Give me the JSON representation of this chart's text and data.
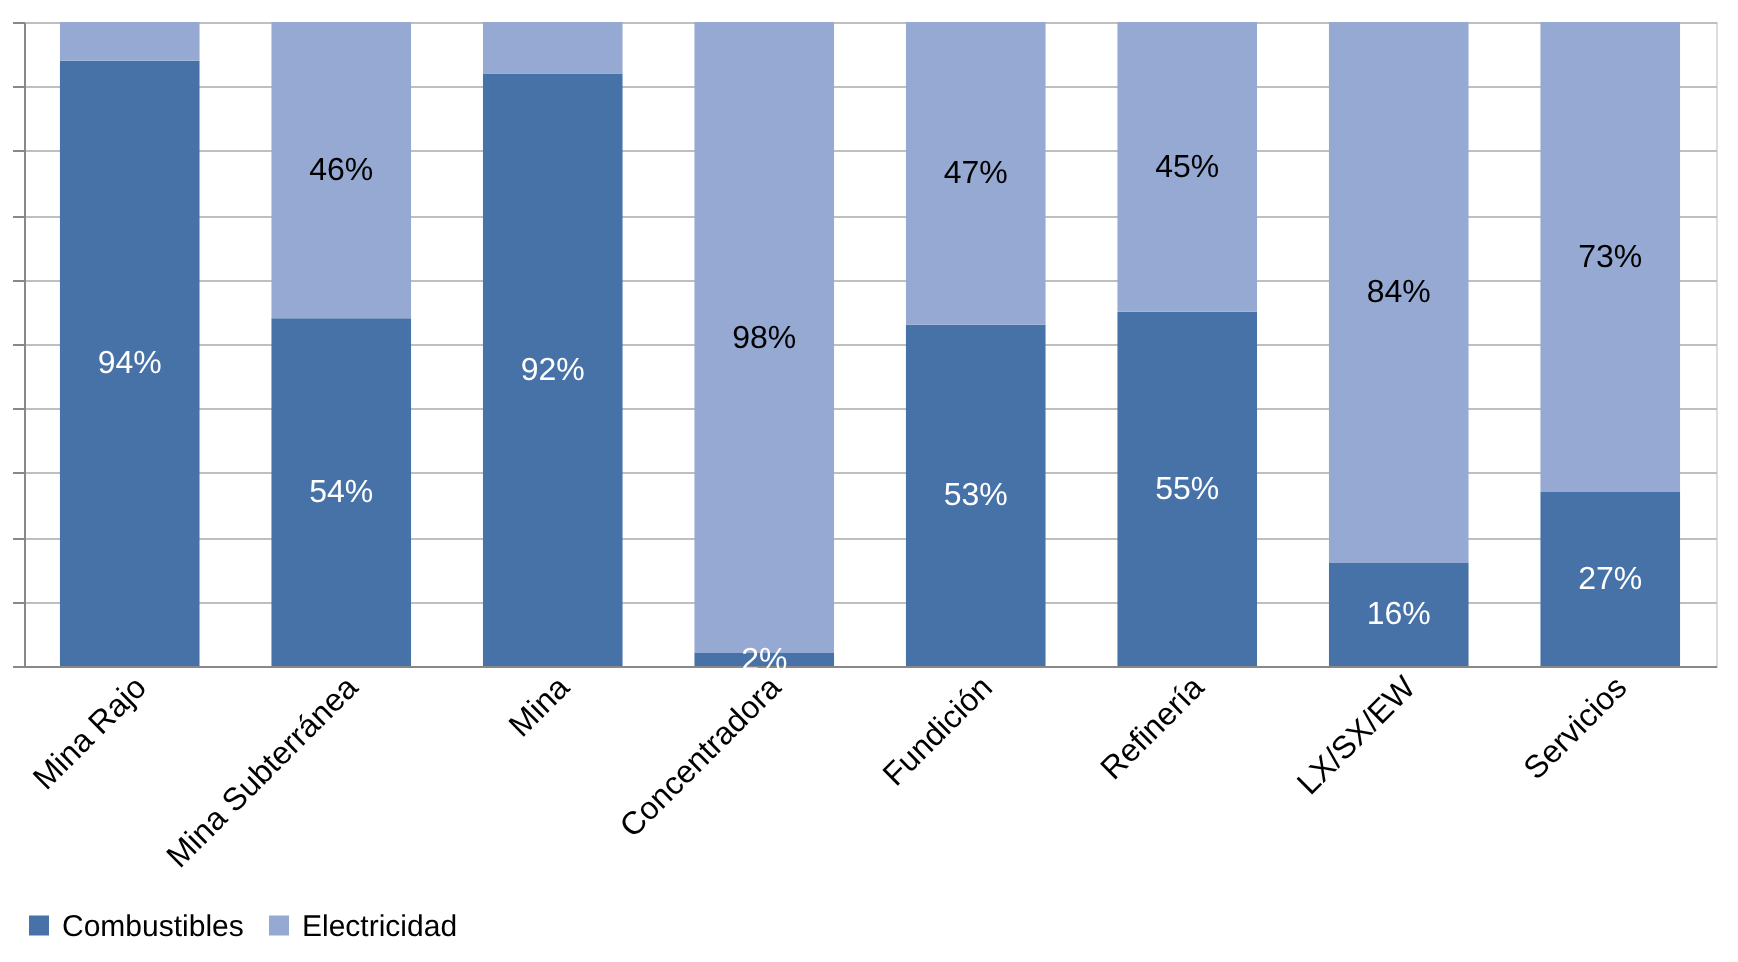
{
  "chart_data": {
    "type": "bar",
    "stacked": true,
    "categories": [
      "Mina Rajo",
      "Mina Subterránea",
      "Mina",
      "Concentradora",
      "Fundición",
      "Refinería",
      "LX/SX/EW",
      "Servicios"
    ],
    "series": [
      {
        "name": "Combustibles",
        "color": "#4672a8",
        "values": [
          94,
          54,
          92,
          2,
          53,
          55,
          16,
          27
        ],
        "value_labels": [
          "94%",
          "54%",
          "92%",
          "2%",
          "53%",
          "55%",
          "16%",
          "27%"
        ]
      },
      {
        "name": "Electricidad",
        "color": "#95a9d2",
        "values": [
          6,
          46,
          8,
          98,
          47,
          45,
          84,
          73
        ],
        "value_labels": [
          null,
          "46%",
          null,
          "98%",
          "47%",
          "45%",
          "84%",
          "73%"
        ]
      }
    ],
    "ylim": [
      0,
      100
    ],
    "yticks": [
      {
        "value": 0,
        "label": null
      },
      {
        "value": 10,
        "label": null
      },
      {
        "value": 20,
        "label": null
      },
      {
        "value": 30,
        "label": null
      },
      {
        "value": 40,
        "label": null
      },
      {
        "value": 50,
        "label": null
      },
      {
        "value": 60,
        "label": null
      },
      {
        "value": 70,
        "label": null
      },
      {
        "value": 80,
        "label": null
      },
      {
        "value": 90,
        "label": null
      },
      {
        "value": 100,
        "label": null
      }
    ],
    "tick_labels": "x",
    "grid": "y",
    "legend": "bottom"
  }
}
